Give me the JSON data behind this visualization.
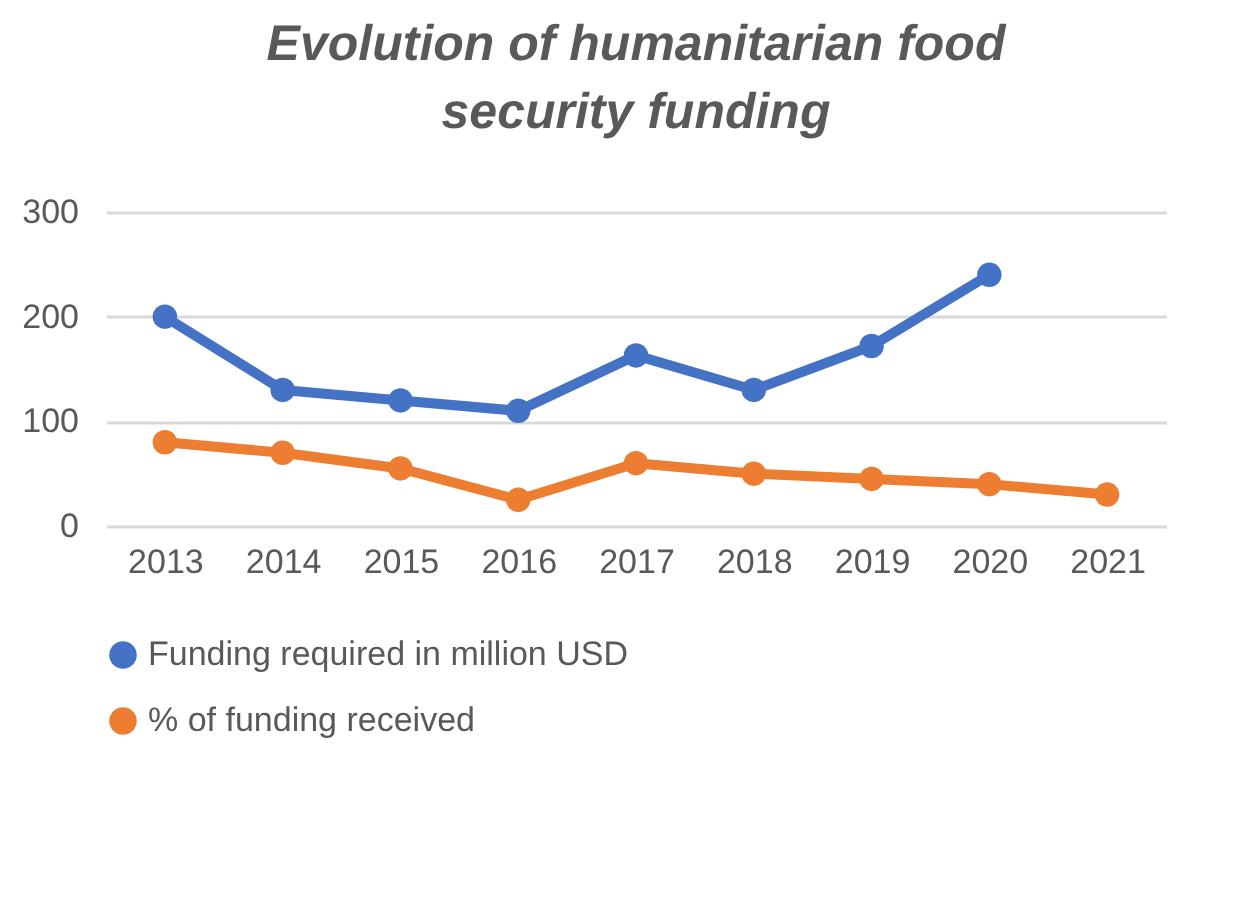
{
  "chart_data": {
    "type": "line",
    "title": [
      "Evolution of humanitarian food",
      "security funding"
    ],
    "categories": [
      "2013",
      "2014",
      "2015",
      "2016",
      "2017",
      "2018",
      "2019",
      "2020",
      "2021"
    ],
    "series": [
      {
        "name": "Funding required in million USD",
        "color": "#4472c4",
        "values": [
          200,
          130,
          120,
          110,
          163,
          130,
          172,
          240,
          null
        ]
      },
      {
        "name": "% of funding received",
        "color": "#ed7d31",
        "values": [
          80,
          70,
          55,
          25,
          60,
          50,
          45,
          40,
          30
        ]
      }
    ],
    "ylim": [
      0,
      300
    ],
    "yticks": [
      0,
      100,
      200,
      300
    ],
    "grid": "y",
    "legend": "bottom",
    "marker": "circle",
    "line_style": "solid"
  }
}
